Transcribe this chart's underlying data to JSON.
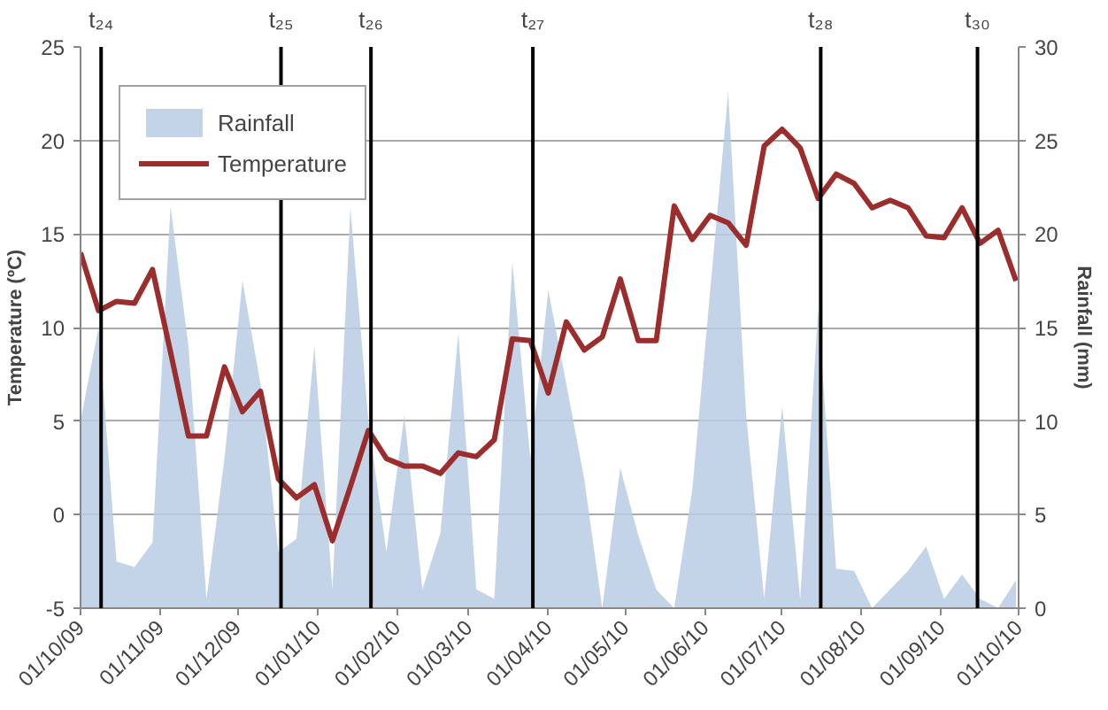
{
  "chart_data": {
    "type": "line",
    "ylabel": "Temperature (ºC)",
    "y2label": "Rainfall (mm)",
    "x": [
      "2009-10-01",
      "2009-10-08",
      "2009-10-15",
      "2009-10-22",
      "2009-10-29",
      "2009-11-05",
      "2009-11-12",
      "2009-11-19",
      "2009-11-26",
      "2009-12-03",
      "2009-12-10",
      "2009-12-17",
      "2009-12-24",
      "2009-12-31",
      "2010-01-07",
      "2010-01-14",
      "2010-01-21",
      "2010-01-28",
      "2010-02-04",
      "2010-02-11",
      "2010-02-18",
      "2010-02-25",
      "2010-03-04",
      "2010-03-11",
      "2010-03-18",
      "2010-03-25",
      "2010-04-01",
      "2010-04-08",
      "2010-04-15",
      "2010-04-22",
      "2010-04-29",
      "2010-05-06",
      "2010-05-13",
      "2010-05-20",
      "2010-05-27",
      "2010-06-03",
      "2010-06-10",
      "2010-06-17",
      "2010-06-24",
      "2010-07-01",
      "2010-07-08",
      "2010-07-15",
      "2010-07-22",
      "2010-07-29",
      "2010-08-05",
      "2010-08-12",
      "2010-08-19",
      "2010-08-26",
      "2010-09-02",
      "2010-09-09",
      "2010-09-16",
      "2010-09-23",
      "2010-09-30"
    ],
    "series": [
      {
        "name": "Rainfall",
        "type": "area",
        "axis": "y2",
        "color": "#b8cce4",
        "values": [
          10,
          15,
          2.5,
          2.2,
          3.5,
          21.5,
          14,
          0.5,
          8,
          17.5,
          12,
          3,
          3.7,
          14,
          1,
          21.4,
          10,
          3,
          10.3,
          1,
          4,
          14.7,
          1,
          0.5,
          18.5,
          8,
          17,
          12,
          6.9,
          0,
          7.5,
          3.9,
          1,
          0,
          6.3,
          17,
          27.6,
          10.3,
          0.5,
          10.8,
          0.5,
          16,
          2.1,
          2,
          0,
          1,
          2,
          3.3,
          0.5,
          1.8,
          0.5,
          0,
          1.5
        ]
      },
      {
        "name": "Temperature",
        "color": "#9b2d2d",
        "values": [
          14.0,
          10.9,
          11.4,
          11.3,
          13.1,
          8.7,
          4.2,
          4.2,
          7.9,
          5.5,
          6.6,
          1.9,
          0.9,
          1.6,
          -1.4,
          1.5,
          4.5,
          3.0,
          2.6,
          2.6,
          2.2,
          3.3,
          3.1,
          4.0,
          9.4,
          9.3,
          6.5,
          10.3,
          8.8,
          9.5,
          12.6,
          9.3,
          9.3,
          16.5,
          14.7,
          16.0,
          15.6,
          14.4,
          19.7,
          20.6,
          19.6,
          16.9,
          18.2,
          17.7,
          16.4,
          16.8,
          16.4,
          14.9,
          14.8,
          16.4,
          14.5,
          15.2,
          12.5
        ]
      }
    ],
    "xlim": [
      "2009-10-01",
      "2010-10-01"
    ],
    "xticks": [
      {
        "value": "2009-10-01",
        "label": "01/10/09"
      },
      {
        "value": "2009-11-01",
        "label": "01/11/09"
      },
      {
        "value": "2009-12-01",
        "label": "01/12/09"
      },
      {
        "value": "2010-01-01",
        "label": "01/01/10"
      },
      {
        "value": "2010-02-01",
        "label": "01/02/10"
      },
      {
        "value": "2010-03-01",
        "label": "01/03/10"
      },
      {
        "value": "2010-04-01",
        "label": "01/04/10"
      },
      {
        "value": "2010-05-01",
        "label": "01/05/10"
      },
      {
        "value": "2010-06-01",
        "label": "01/06/10"
      },
      {
        "value": "2010-07-01",
        "label": "01/07/10"
      },
      {
        "value": "2010-08-01",
        "label": "01/08/10"
      },
      {
        "value": "2010-09-01",
        "label": "01/09/10"
      },
      {
        "value": "2010-10-01",
        "label": "01/10/10"
      }
    ],
    "ylim": [
      -5,
      25
    ],
    "yticks": [
      -5,
      0,
      5,
      10,
      15,
      20,
      25
    ],
    "y2lim": [
      0,
      30
    ],
    "y2ticks": [
      0,
      5,
      10,
      15,
      20,
      25,
      30
    ],
    "ref_lines": [
      {
        "axis": "x",
        "value": "2009-10-09",
        "label": "t₂₄",
        "color": "#000000"
      },
      {
        "axis": "x",
        "value": "2009-12-18",
        "label": "t₂₅",
        "color": "#000000"
      },
      {
        "axis": "x",
        "value": "2010-01-22",
        "label": "t₂₆",
        "color": "#000000"
      },
      {
        "axis": "x",
        "value": "2010-03-26",
        "label": "t₂₇",
        "color": "#000000"
      },
      {
        "axis": "x",
        "value": "2010-07-16",
        "label": "t₂₈",
        "color": "#000000"
      },
      {
        "axis": "x",
        "value": "2010-09-15",
        "label": "t₃₀",
        "color": "#000000"
      }
    ],
    "grid": "y",
    "legend": "top left",
    "marker": "none",
    "line_style": "solid"
  }
}
